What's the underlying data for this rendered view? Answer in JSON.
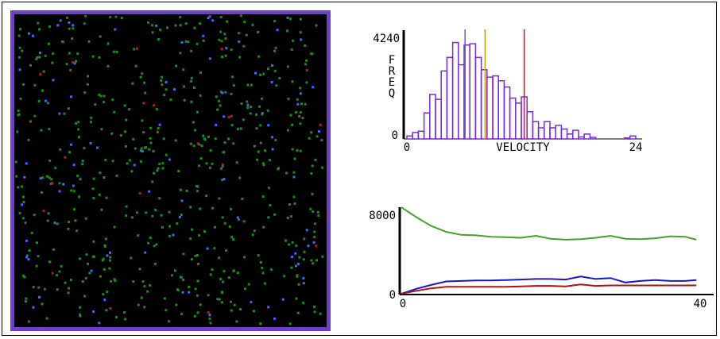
{
  "simulation": {
    "border_color": "#6e3fcf",
    "background": "#000000",
    "particle_colors": {
      "green": "#1e8a1e",
      "blue": "#3a6cff",
      "red": "#b02020"
    },
    "particle_counts": {
      "green": 560,
      "blue": 95,
      "red": 20
    }
  },
  "histogram": {
    "y_max_label": "4240",
    "y_min_label": "0",
    "y_axis_label": "FREQ",
    "x_min_label": "0",
    "x_max_label": "24",
    "x_axis_label": "VELOCITY",
    "bar_color": "#7a2bd6",
    "marker_colors": [
      "#6a55d8",
      "#b8a300",
      "#d01010"
    ]
  },
  "timeplot": {
    "y_max_label": "8000",
    "y_min_label": "0",
    "x_min_label": "0",
    "x_max_label": "40"
  },
  "chart_data": [
    {
      "type": "bar",
      "x_range": [
        0,
        24
      ],
      "ylim": [
        0,
        4240
      ],
      "xlabel": "VELOCITY",
      "ylabel": "FREQ",
      "values": [
        120,
        260,
        310,
        1050,
        1800,
        1600,
        2750,
        3300,
        3900,
        3000,
        3800,
        3850,
        3300,
        2800,
        2500,
        2550,
        2350,
        2100,
        1650,
        1450,
        1700,
        1100,
        700,
        450,
        700,
        450,
        550,
        400,
        200,
        350,
        80,
        200,
        60,
        0,
        0,
        0,
        0,
        0,
        40,
        120
      ],
      "markers": [
        6.1,
        8.2,
        12.3
      ]
    },
    {
      "type": "line",
      "x_range": [
        0,
        40
      ],
      "ylim": [
        0,
        8000
      ],
      "series": [
        {
          "color": "#4aa02a",
          "x": [
            0,
            2,
            4,
            6,
            8,
            10,
            12,
            14,
            16,
            18,
            20,
            22,
            24,
            26,
            28,
            30,
            32,
            34,
            36,
            38,
            39.5
          ],
          "y": [
            8800,
            7800,
            6900,
            6300,
            6000,
            5950,
            5800,
            5750,
            5700,
            5900,
            5600,
            5500,
            5550,
            5700,
            5900,
            5600,
            5550,
            5650,
            5850,
            5800,
            5500
          ]
        },
        {
          "color": "#1818c8",
          "x": [
            0,
            2,
            4,
            6,
            8,
            10,
            12,
            14,
            16,
            18,
            20,
            22,
            24,
            26,
            28,
            30,
            32,
            34,
            36,
            38,
            39.5
          ],
          "y": [
            0,
            500,
            900,
            1250,
            1300,
            1350,
            1350,
            1400,
            1450,
            1500,
            1500,
            1450,
            1750,
            1500,
            1600,
            1150,
            1300,
            1400,
            1300,
            1300,
            1400
          ]
        },
        {
          "color": "#b01010",
          "x": [
            0,
            2,
            4,
            6,
            8,
            10,
            12,
            14,
            16,
            18,
            20,
            22,
            24,
            26,
            28,
            30,
            32,
            34,
            36,
            38,
            39.5
          ],
          "y": [
            0,
            300,
            550,
            700,
            700,
            700,
            700,
            700,
            750,
            800,
            800,
            750,
            950,
            800,
            850,
            850,
            850,
            850,
            850,
            850,
            850
          ]
        }
      ]
    }
  ]
}
